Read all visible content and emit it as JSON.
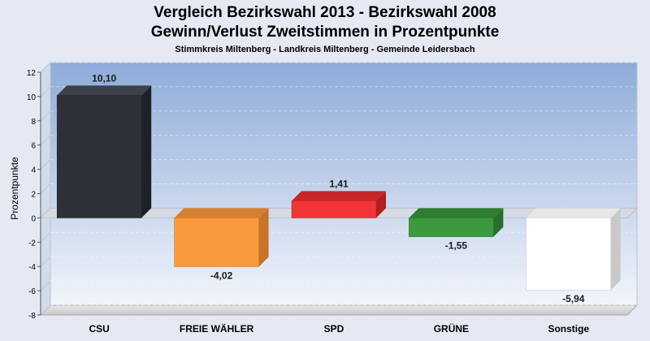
{
  "chart_data": {
    "type": "bar",
    "title_line1": "Vergleich Bezirkswahl 2013 - Bezirkswahl 2008",
    "title_line2": "Gewinn/Verlust Zweitstimmen in Prozentpunkte",
    "subtitle": "Stimmkreis Miltenberg - Landkreis Miltenberg - Gemeinde Leidersbach",
    "ylabel": "Prozentpunkte",
    "xlabel": "",
    "ylim": [
      -8,
      12
    ],
    "yticks": [
      "12",
      "10",
      "8",
      "6",
      "4",
      "2",
      "0",
      "-2",
      "-4",
      "-6",
      "-8"
    ],
    "yticks_values": [
      12,
      10,
      8,
      6,
      4,
      2,
      0,
      -2,
      -4,
      -6,
      -8
    ],
    "grid": true,
    "categories": [
      "CSU",
      "FREIE WÄHLER",
      "SPD",
      "GRÜNE",
      "Sonstige"
    ],
    "values": [
      10.1,
      -4.02,
      1.41,
      -1.55,
      -5.94
    ],
    "value_labels": [
      "10,10",
      "-4,02",
      "1,41",
      "-1,55",
      "-5,94"
    ],
    "colors": [
      "#2d3039",
      "#f99a3c",
      "#f23539",
      "#3a9a3d",
      "#ffffff"
    ],
    "colors_top": [
      "#3c414c",
      "#d57f30",
      "#c8262a",
      "#2f7d32",
      "#e6e6e6"
    ],
    "colors_side": [
      "#1f2128",
      "#c77428",
      "#b21e22",
      "#2a6e2c",
      "#c9c9c9"
    ]
  }
}
